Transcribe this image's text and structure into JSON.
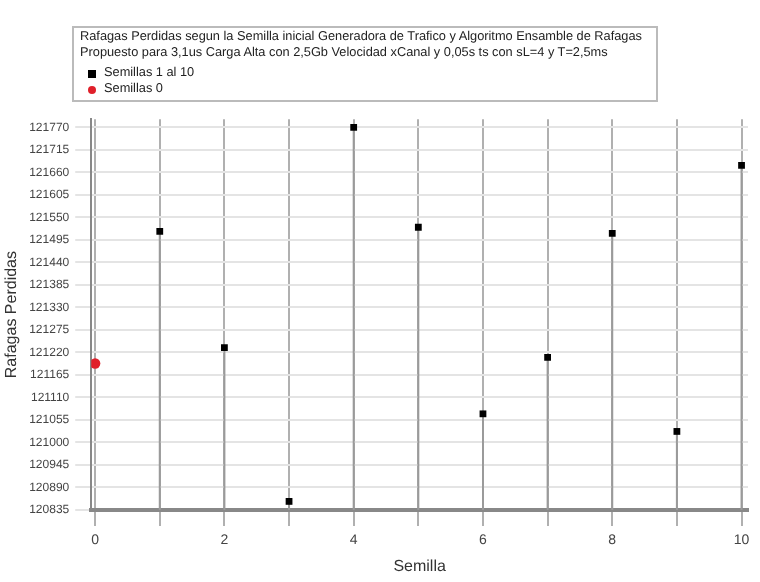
{
  "chart_data": {
    "type": "lollipop",
    "title": "Rafagas Perdidas segun la Semilla inicial Generadora de Trafico y Algoritmo Ensamble de Rafagas Propuesto para 3,1us Carga Alta con 2,5Gb Velocidad xCanal y 0,05s ts con sL=4 y T=2,5ms",
    "xlabel": "Semilla",
    "ylabel": "Rafagas Perdidas",
    "series": [
      {
        "name": "Semillas 1 al 10",
        "color": "#000000",
        "marker": "square",
        "x": [
          1,
          2,
          3,
          4,
          5,
          6,
          7,
          8,
          9,
          10
        ],
        "values": [
          121516,
          121232,
          120856,
          121770,
          121526,
          121070,
          121208,
          121511,
          121027,
          121677
        ]
      },
      {
        "name": "Semillas 0",
        "type": "scatter",
        "color": "#e0202a",
        "marker": "circle",
        "x": [
          0
        ],
        "values": [
          121193
        ]
      }
    ],
    "xlim": [
      -0.06,
      10.1
    ],
    "xticks": [
      0,
      {
        "value": 1,
        "label": null
      },
      2,
      {
        "value": 3,
        "label": null
      },
      4,
      {
        "value": 5,
        "label": null
      },
      6,
      {
        "value": 7,
        "label": null
      },
      8,
      {
        "value": 9,
        "label": null
      },
      10
    ],
    "ylim": [
      120835,
      121790
    ],
    "yticks": [
      120835,
      120890,
      120945,
      121000,
      121055,
      121110,
      121165,
      121220,
      121275,
      121330,
      121385,
      121440,
      121495,
      121550,
      121605,
      121660,
      121715,
      121770
    ],
    "grid": true,
    "legend": "top left"
  }
}
